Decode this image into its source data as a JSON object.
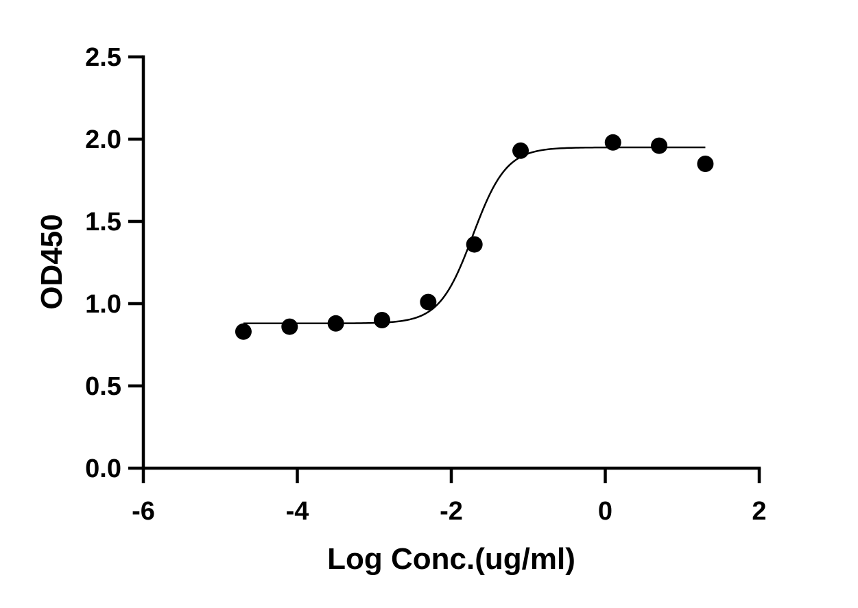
{
  "chart_data": {
    "type": "scatter",
    "xlabel": "Log Conc.(ug/ml)",
    "ylabel": "OD450",
    "xlim": [
      -6,
      2
    ],
    "ylim": [
      0,
      2.5
    ],
    "xticks": [
      -6,
      -4,
      -2,
      0,
      2
    ],
    "xtick_labels": [
      "-6",
      "-4",
      "-2",
      "0",
      "2"
    ],
    "yticks": [
      0,
      0.5,
      1.0,
      1.5,
      2.0,
      2.5
    ],
    "ytick_labels": [
      "0.0",
      "0.5",
      "1.0",
      "1.5",
      "2.0",
      "2.5"
    ],
    "grid": false,
    "legend": "none",
    "series": [
      {
        "x": [
          -4.7,
          -4.1,
          -3.5,
          -2.9,
          -2.3,
          -1.7,
          -1.1,
          0.1,
          0.7,
          1.3
        ],
        "y": [
          0.83,
          0.86,
          0.88,
          0.9,
          1.01,
          1.36,
          1.93,
          1.98,
          1.96,
          1.85
        ],
        "marker": "circle",
        "color": "#000000"
      }
    ],
    "fit_curve": {
      "model": "4PL",
      "bottom": 0.88,
      "top": 1.95,
      "log_ec50": -1.72,
      "hill_slope": 2.0,
      "x_range": [
        -4.7,
        1.3
      ],
      "color": "#000000"
    }
  }
}
